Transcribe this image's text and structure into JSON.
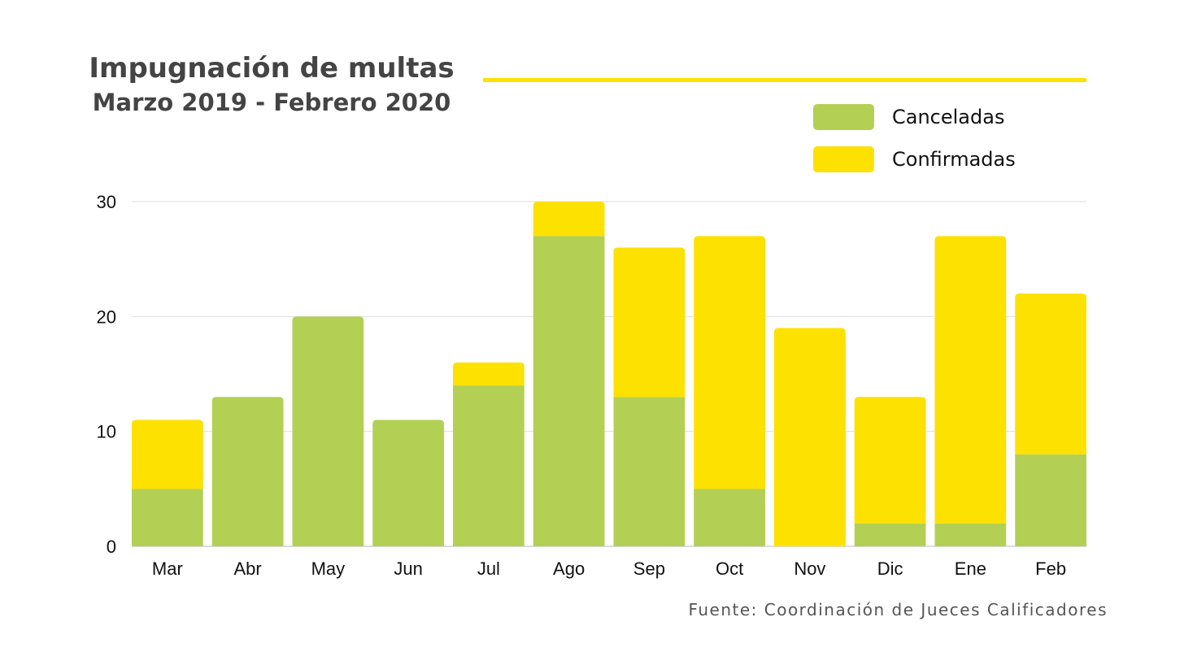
{
  "colors": {
    "canceladas": "#b3d054",
    "confirmadas": "#fde100",
    "accent": "#fde100",
    "grid": "#dddddd",
    "axis": "#bbbbbb"
  },
  "chart_data": {
    "type": "bar",
    "stacked": true,
    "title": "Impugnación de multas",
    "subtitle": "Marzo 2019 - Febrero 2020",
    "categories": [
      "Mar",
      "Abr",
      "May",
      "Jun",
      "Jul",
      "Ago",
      "Sep",
      "Oct",
      "Nov",
      "Dic",
      "Ene",
      "Feb"
    ],
    "series": [
      {
        "name": "Canceladas",
        "values": [
          5,
          13,
          20,
          11,
          14,
          27,
          13,
          5,
          0,
          2,
          2,
          8
        ]
      },
      {
        "name": "Confirmadas",
        "values": [
          6,
          0,
          0,
          0,
          2,
          3,
          13,
          22,
          19,
          11,
          25,
          14
        ]
      }
    ],
    "ylim": [
      0,
      30
    ],
    "yticks": [
      0,
      10,
      20,
      30
    ],
    "grid": true,
    "legend": "top-right",
    "source": "Fuente: Coordinación de Jueces Calificadores"
  }
}
